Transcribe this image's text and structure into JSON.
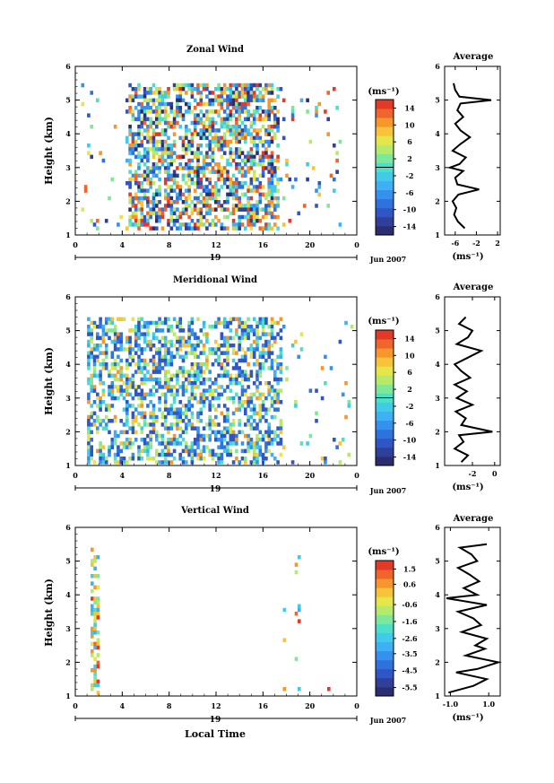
{
  "figure": {
    "x_axis_title": "Local Time",
    "date_label": "Jun 2007",
    "day_label": "19",
    "colorbar_unit": "(ms⁻¹)",
    "average_unit": "(ms⁻¹)",
    "average_title": "Average",
    "height_label": "Height (km)"
  },
  "colors": {
    "palette": [
      "#2b2d6e",
      "#2f3f9a",
      "#2f56c4",
      "#2f72de",
      "#3690ee",
      "#3eb0f4",
      "#41cbe8",
      "#4be0c7",
      "#7ee89a",
      "#b6ea6a",
      "#e6e64a",
      "#f7c33a",
      "#f6962c",
      "#f0652b",
      "#e33a27"
    ]
  },
  "chart_data": [
    {
      "type": "heatmap",
      "title": "Zonal Wind",
      "x_ticks": [
        "0",
        "4",
        "8",
        "12",
        "16",
        "20",
        "0"
      ],
      "y_ticks": [
        "1",
        "2",
        "3",
        "4",
        "5",
        "6"
      ],
      "xlim": [
        0,
        24
      ],
      "ylim": [
        1,
        6
      ],
      "colorbar_ticks": [
        "14",
        "10",
        "6",
        "2",
        "-2",
        "-6",
        "-10",
        "-14"
      ],
      "colorbar_range": [
        -16,
        16
      ],
      "data_x_extent": [
        0.5,
        22.5
      ],
      "dense_x_extent": [
        4.5,
        17.2
      ],
      "data_y_extent": [
        1.2,
        5.5
      ],
      "average_profile": {
        "x_ticks": [
          "-6",
          "-2",
          "2"
        ],
        "xlim": [
          -8,
          2.5
        ],
        "heights": [
          1.2,
          1.4,
          1.6,
          1.8,
          2.0,
          2.2,
          2.35,
          2.5,
          2.7,
          2.9,
          3.0,
          3.1,
          3.3,
          3.5,
          3.7,
          3.9,
          4.1,
          4.3,
          4.5,
          4.7,
          4.9,
          5.0,
          5.1,
          5.3,
          5.5
        ],
        "values": [
          -4.2,
          -5.5,
          -6.2,
          -5.8,
          -6.5,
          -5.4,
          -1.5,
          -5.6,
          -6.0,
          -4.5,
          -7.0,
          -5.2,
          -4.0,
          -6.5,
          -5.0,
          -3.2,
          -5.0,
          -6.0,
          -4.5,
          -5.6,
          -5.0,
          0.8,
          -5.2,
          -6.0,
          -6.3
        ]
      }
    },
    {
      "type": "heatmap",
      "title": "Meridional Wind",
      "x_ticks": [
        "0",
        "4",
        "8",
        "12",
        "16",
        "20",
        "0"
      ],
      "y_ticks": [
        "1",
        "2",
        "3",
        "4",
        "5",
        "6"
      ],
      "xlim": [
        0,
        24
      ],
      "ylim": [
        1,
        6
      ],
      "colorbar_ticks": [
        "14",
        "10",
        "6",
        "2",
        "-2",
        "-6",
        "-10",
        "-14"
      ],
      "colorbar_range": [
        -16,
        16
      ],
      "data_x_extent": [
        1.0,
        23.5
      ],
      "dense_x_extent": [
        1.0,
        17.5
      ],
      "data_y_extent": [
        1.1,
        5.4
      ],
      "average_profile": {
        "x_ticks": [
          "-2",
          "0"
        ],
        "xlim": [
          -4.5,
          0.5
        ],
        "heights": [
          1.1,
          1.3,
          1.5,
          1.7,
          1.9,
          2.0,
          2.2,
          2.4,
          2.6,
          2.8,
          3.0,
          3.2,
          3.4,
          3.6,
          3.8,
          4.0,
          4.2,
          4.4,
          4.6,
          4.8,
          5.0,
          5.2,
          5.4
        ],
        "values": [
          -3.0,
          -2.4,
          -3.6,
          -2.8,
          -3.2,
          -0.2,
          -3.0,
          -2.6,
          -3.5,
          -2.0,
          -3.4,
          -2.5,
          -3.6,
          -2.2,
          -3.0,
          -3.6,
          -2.4,
          -1.2,
          -3.4,
          -2.4,
          -2.0,
          -3.2,
          -2.6
        ]
      }
    },
    {
      "type": "heatmap",
      "title": "Vertical Wind",
      "x_ticks": [
        "0",
        "4",
        "8",
        "12",
        "16",
        "20",
        "0"
      ],
      "y_ticks": [
        "1",
        "2",
        "3",
        "4",
        "5",
        "6"
      ],
      "xlim": [
        0,
        24
      ],
      "ylim": [
        1,
        6
      ],
      "colorbar_ticks": [
        "1.5",
        "0.6",
        "-0.6",
        "-1.6",
        "-2.6",
        "-3.5",
        "-4.5",
        "-5.5"
      ],
      "colorbar_range": [
        -6,
        2
      ],
      "data_x_extent": [
        1.3,
        21.5
      ],
      "data_y_extent": [
        1.1,
        5.4
      ],
      "average_profile": {
        "x_ticks": [
          "-1.0",
          "1.0"
        ],
        "xlim": [
          -1.3,
          1.6
        ],
        "heights": [
          1.1,
          1.3,
          1.5,
          1.7,
          1.8,
          2.0,
          2.2,
          2.4,
          2.5,
          2.7,
          2.9,
          3.1,
          3.3,
          3.5,
          3.7,
          3.9,
          4.0,
          4.2,
          4.4,
          4.6,
          4.8,
          5.0,
          5.2,
          5.4,
          5.5
        ],
        "values": [
          -1.1,
          0.2,
          0.9,
          -0.7,
          0.4,
          1.5,
          -0.2,
          0.8,
          0.3,
          0.9,
          -0.4,
          0.6,
          0.2,
          -0.6,
          0.9,
          -1.2,
          0.4,
          -0.3,
          0.5,
          0.0,
          -0.6,
          0.4,
          0.1,
          -0.5,
          0.9
        ]
      }
    }
  ]
}
